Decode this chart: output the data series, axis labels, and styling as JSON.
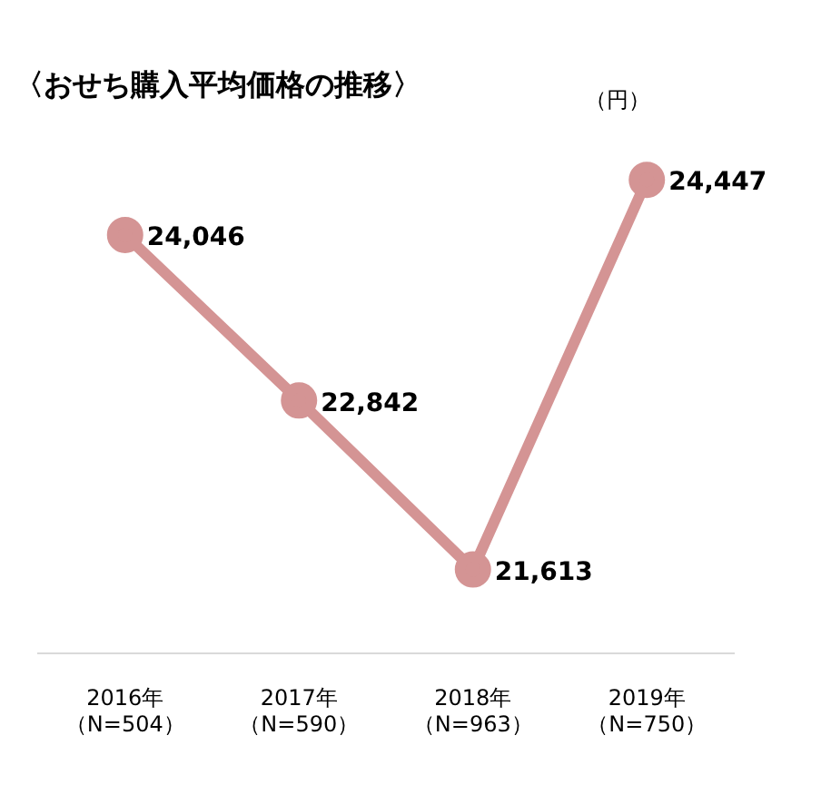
{
  "chart_data": {
    "type": "line",
    "title": "〈おせち購入平均価格の推移〉",
    "ylabel": "（円）",
    "categories": [
      "2016年（N=504）",
      "2017年（N=590）",
      "2018年（N=963）",
      "2019年（N=750）"
    ],
    "series": [
      {
        "color": "#d49494",
        "values": [
          24046,
          22842,
          21613,
          24447
        ],
        "value_labels": [
          "24,046",
          "22,842",
          "21,613",
          "24,447"
        ]
      }
    ],
    "marker": "circle",
    "line_style": "solid",
    "grid": false,
    "legend": false
  }
}
